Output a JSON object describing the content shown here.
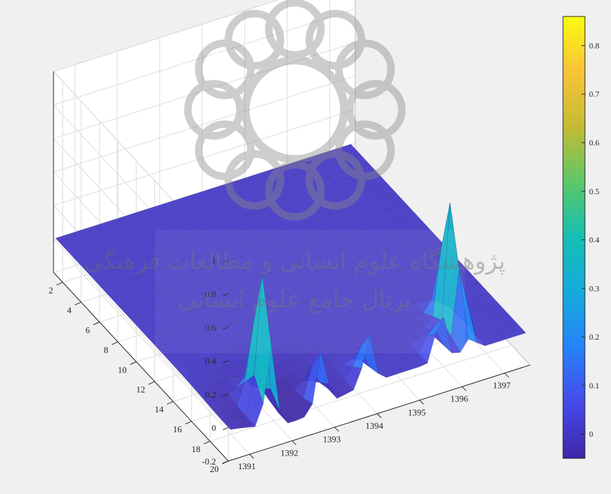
{
  "chart_data": {
    "type": "surface",
    "title": "",
    "xlabel": "",
    "ylabel": "",
    "zlabel": "",
    "x_axis": {
      "ticks": [
        1391,
        1392,
        1393,
        1394,
        1395,
        1396,
        1397
      ],
      "range": [
        1390.5,
        1397.6
      ]
    },
    "y_axis": {
      "ticks": [
        2,
        4,
        6,
        8,
        10,
        12,
        14,
        16,
        18,
        20
      ],
      "range": [
        1,
        20
      ]
    },
    "z_axis": {
      "ticks": [
        -0.2,
        0,
        0.2,
        0.4,
        0.6,
        0.8,
        1
      ],
      "range": [
        -0.2,
        1
      ]
    },
    "colorbar": {
      "ticks": [
        0,
        0.1,
        0.2,
        0.3,
        0.4,
        0.5,
        0.6,
        0.7,
        0.8
      ],
      "range": [
        -0.05,
        0.86
      ],
      "colormap": "parula"
    },
    "grid": true,
    "peaks": [
      {
        "x": 1391.5,
        "y": 19,
        "z": 0.85
      },
      {
        "x": 1392.7,
        "y": 20,
        "z": 0.35
      },
      {
        "x": 1393.8,
        "y": 20,
        "z": 0.3
      },
      {
        "x": 1395.5,
        "y": 20,
        "z": 0.3
      },
      {
        "x": 1396.2,
        "y": 18,
        "z": 0.85
      }
    ]
  },
  "colors": {
    "background": "#f0f0f0",
    "axes_background": "#ffffff",
    "grid": "#dcdcdc",
    "surface_edge": "#23306b"
  },
  "watermark": {
    "title": "پژوهشگاه علوم انسانی و مطالعات فرهنگی",
    "subtitle": "پرتال جامع علوم انسانی"
  }
}
